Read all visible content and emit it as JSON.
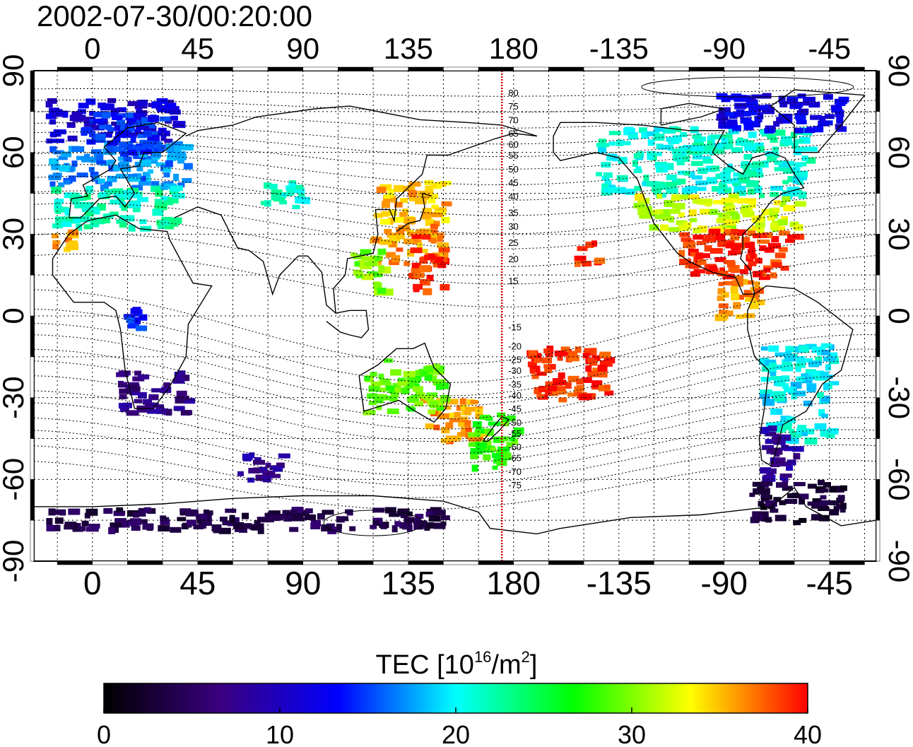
{
  "timestamp": "2002-07-30/00:20:00",
  "chart_data": {
    "type": "heatmap",
    "projection": "equirectangular, longitude 0 near left edge, dateline at center",
    "x_tick_labels": [
      "0",
      "45",
      "90",
      "135",
      "180",
      "-135",
      "-90",
      "-45"
    ],
    "y_tick_labels": [
      "90",
      "60",
      "30",
      "0",
      "-30",
      "-60",
      "-90"
    ],
    "lon_ticks": [
      0,
      45,
      90,
      135,
      180,
      225,
      270,
      315
    ],
    "lat_ticks": [
      90,
      60,
      30,
      0,
      -30,
      -60,
      -90
    ],
    "xlim": [
      -25,
      335
    ],
    "ylim": [
      -90,
      90
    ],
    "grid": true,
    "marked_meridian_lon": 175,
    "meridian_color": "#d00000",
    "contour_labels": [
      "80",
      "75",
      "70",
      "65",
      "60",
      "55",
      "50",
      "45",
      "40",
      "35",
      "30",
      "25",
      "20",
      "15",
      "-15",
      "-20",
      "-25",
      "-30",
      "-35",
      "-40",
      "-45",
      "-50",
      "-55",
      "-60",
      "-65",
      "-70",
      "-75"
    ],
    "contour_label_lats": [
      82,
      77,
      72,
      67,
      63,
      59,
      54,
      49,
      44,
      38,
      33,
      27,
      21,
      13,
      -4,
      -11,
      -16,
      -20,
      -25,
      -29,
      -34,
      -39,
      -43,
      -48,
      -52,
      -57,
      -62
    ],
    "colorbar": {
      "title_main": "TEC  [10",
      "title_exp1": "16",
      "title_mid": "/m",
      "title_exp2": "2",
      "title_end": "]",
      "min": 0,
      "max": 40,
      "tick_labels": [
        "0",
        "10",
        "20",
        "30",
        "40"
      ],
      "colors": [
        "#000000",
        "#3a0080",
        "#0000ff",
        "#00ffff",
        "#00ff00",
        "#ffff00",
        "#ff0000"
      ]
    },
    "tec_regions": [
      {
        "lon": [
          -20,
          35
        ],
        "lat": [
          65,
          80
        ],
        "tec": 11
      },
      {
        "lon": [
          -20,
          40
        ],
        "lat": [
          48,
          65
        ],
        "tec": 17
      },
      {
        "lon": [
          -18,
          35
        ],
        "lat": [
          33,
          48
        ],
        "tec": 22
      },
      {
        "lon": [
          -20,
          -10
        ],
        "lat": [
          25,
          33
        ],
        "tec": 36
      },
      {
        "lon": [
          70,
          90
        ],
        "lat": [
          40,
          50
        ],
        "tec": 21
      },
      {
        "lon": [
          -5,
          30
        ],
        "lat": [
          60,
          75
        ],
        "tec": 14
      },
      {
        "lon": [
          120,
          150
        ],
        "lat": [
          35,
          50
        ],
        "tec": 35
      },
      {
        "lon": [
          118,
          148
        ],
        "lat": [
          20,
          35
        ],
        "tec": 36
      },
      {
        "lon": [
          135,
          150
        ],
        "lat": [
          10,
          30
        ],
        "tec": 39
      },
      {
        "lon": [
          110,
          125
        ],
        "lat": [
          10,
          25
        ],
        "tec": 30
      },
      {
        "lon": [
          215,
          305
        ],
        "lat": [
          45,
          70
        ],
        "tec": 21
      },
      {
        "lon": [
          230,
          300
        ],
        "lat": [
          32,
          45
        ],
        "tec": 32
      },
      {
        "lon": [
          250,
          300
        ],
        "lat": [
          15,
          32
        ],
        "tec": 39
      },
      {
        "lon": [
          265,
          285
        ],
        "lat": [
          0,
          15
        ],
        "tec": 36
      },
      {
        "lon": [
          265,
          320
        ],
        "lat": [
          68,
          82
        ],
        "tec": 12
      },
      {
        "lon": [
          205,
          215
        ],
        "lat": [
          20,
          28
        ],
        "tec": 39
      },
      {
        "lon": [
          185,
          220
        ],
        "lat": [
          -30,
          -10
        ],
        "tec": 39
      },
      {
        "lon": [
          140,
          165
        ],
        "lat": [
          -45,
          -30
        ],
        "tec": 36
      },
      {
        "lon": [
          115,
          150
        ],
        "lat": [
          -35,
          -15
        ],
        "tec": 29
      },
      {
        "lon": [
          160,
          180
        ],
        "lat": [
          -55,
          -35
        ],
        "tec": 28
      },
      {
        "lon": [
          10,
          40
        ],
        "lat": [
          -35,
          -20
        ],
        "tec": 7
      },
      {
        "lon": [
          10,
          20
        ],
        "lat": [
          -5,
          5
        ],
        "tec": 14
      },
      {
        "lon": [
          285,
          315
        ],
        "lat": [
          -45,
          -10
        ],
        "tec": 20
      },
      {
        "lon": [
          285,
          300
        ],
        "lat": [
          -60,
          -40
        ],
        "tec": 8
      },
      {
        "lon": [
          280,
          320
        ],
        "lat": [
          -75,
          -60
        ],
        "tec": 3
      },
      {
        "lon": [
          -20,
          150
        ],
        "lat": [
          -78,
          -70
        ],
        "tec": 4
      },
      {
        "lon": [
          60,
          80
        ],
        "lat": [
          -60,
          -50
        ],
        "tec": 8
      }
    ]
  }
}
